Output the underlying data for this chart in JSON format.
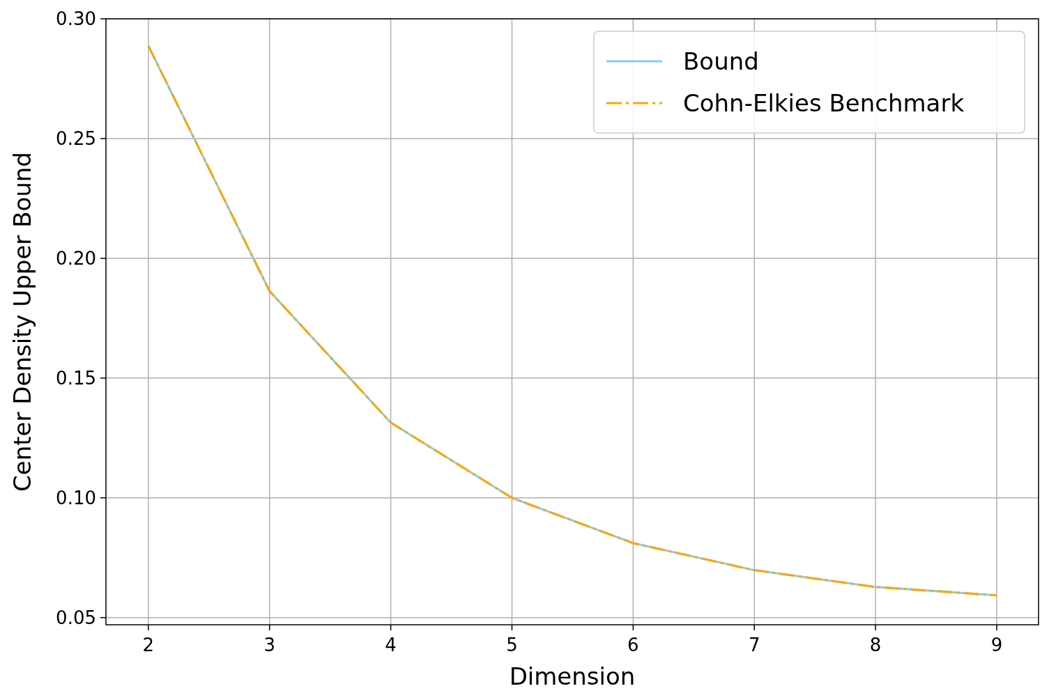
{
  "chart_data": {
    "type": "line",
    "xlabel": "Dimension",
    "ylabel": "Center Density Upper Bound",
    "x": [
      2,
      3,
      4,
      5,
      6,
      7,
      8,
      9
    ],
    "series": [
      {
        "name": "Bound",
        "color": "#87ceeb",
        "line_style": "solid",
        "values": [
          0.2887,
          0.1863,
          0.1314,
          0.1,
          0.0811,
          0.0698,
          0.0628,
          0.0593
        ]
      },
      {
        "name": "Cohn-Elkies Benchmark",
        "color": "#ffa500",
        "line_style": "dashed",
        "values": [
          0.2887,
          0.1863,
          0.1314,
          0.1,
          0.0811,
          0.0698,
          0.0628,
          0.0593
        ]
      }
    ],
    "xlim": [
      1.65,
      9.345
    ],
    "xticks": [
      2,
      3,
      4,
      5,
      6,
      7,
      8,
      9
    ],
    "ylim": [
      0.047,
      0.3
    ],
    "yticks": [
      {
        "value": 0.05,
        "label": "0.05"
      },
      {
        "value": 0.1,
        "label": "0.10"
      },
      {
        "value": 0.15,
        "label": "0.15"
      },
      {
        "value": 0.2,
        "label": "0.20"
      },
      {
        "value": 0.25,
        "label": "0.25"
      },
      {
        "value": 0.3,
        "label": "0.30"
      }
    ],
    "grid": true,
    "legend": "top right"
  }
}
